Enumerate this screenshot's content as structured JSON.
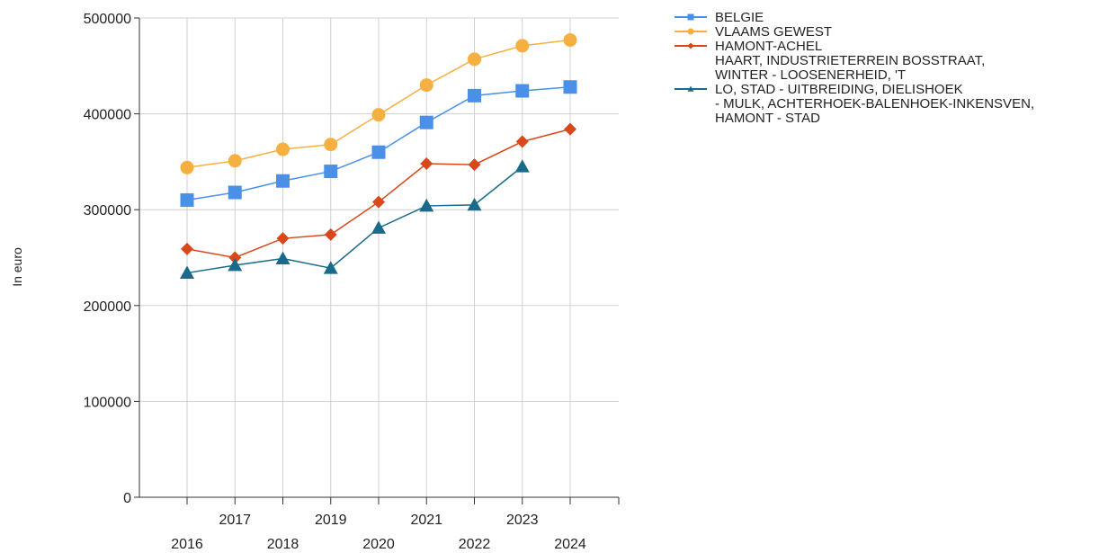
{
  "chart_data": {
    "type": "line",
    "title": "",
    "xlabel": "",
    "ylabel": "In euro",
    "categories": [
      "2016",
      "2017",
      "2018",
      "2019",
      "2020",
      "2021",
      "2022",
      "2023",
      "2024"
    ],
    "ylim": [
      0,
      500000
    ],
    "yticks": [
      0,
      100000,
      200000,
      300000,
      400000,
      500000
    ],
    "grid": true,
    "legend_position": "top-right",
    "series": [
      {
        "name": "BELGIE",
        "color": "#4a8fe8",
        "marker": "square",
        "values": [
          310000,
          318000,
          330000,
          340000,
          360000,
          391000,
          419000,
          424000,
          428000
        ]
      },
      {
        "name": "VLAAMS GEWEST",
        "color": "#f5b041",
        "marker": "circle",
        "values": [
          344000,
          351000,
          363000,
          368000,
          399000,
          430000,
          457000,
          471000,
          477000
        ]
      },
      {
        "name": "HAMONT-ACHEL",
        "color": "#d9481a",
        "marker": "diamond",
        "values": [
          259000,
          250000,
          270000,
          274000,
          308000,
          348000,
          347000,
          371000,
          384000
        ]
      },
      {
        "name": "HAART, INDUSTRIETERREIN BOSSTRAAT, WINTER - LOOSENERHEID, 'T LO, STAD - UITBREIDING, DIELISHOEK - MULK, ACHTERHOEK-BALENHOEK-INKENSVEN, HAMONT - STAD",
        "legend_lines": [
          "HAART, INDUSTRIETERREIN BOSSTRAAT,",
          "WINTER - LOOSENERHEID, 'T",
          "LO, STAD - UITBREIDING, DIELISHOEK",
          "- MULK, ACHTERHOEK-BALENHOEK-INKENSVEN,",
          "HAMONT - STAD"
        ],
        "color": "#1a6a8a",
        "marker": "triangle",
        "values": [
          234000,
          242000,
          249000,
          239000,
          281000,
          304000,
          305000,
          345000,
          null
        ]
      }
    ]
  }
}
